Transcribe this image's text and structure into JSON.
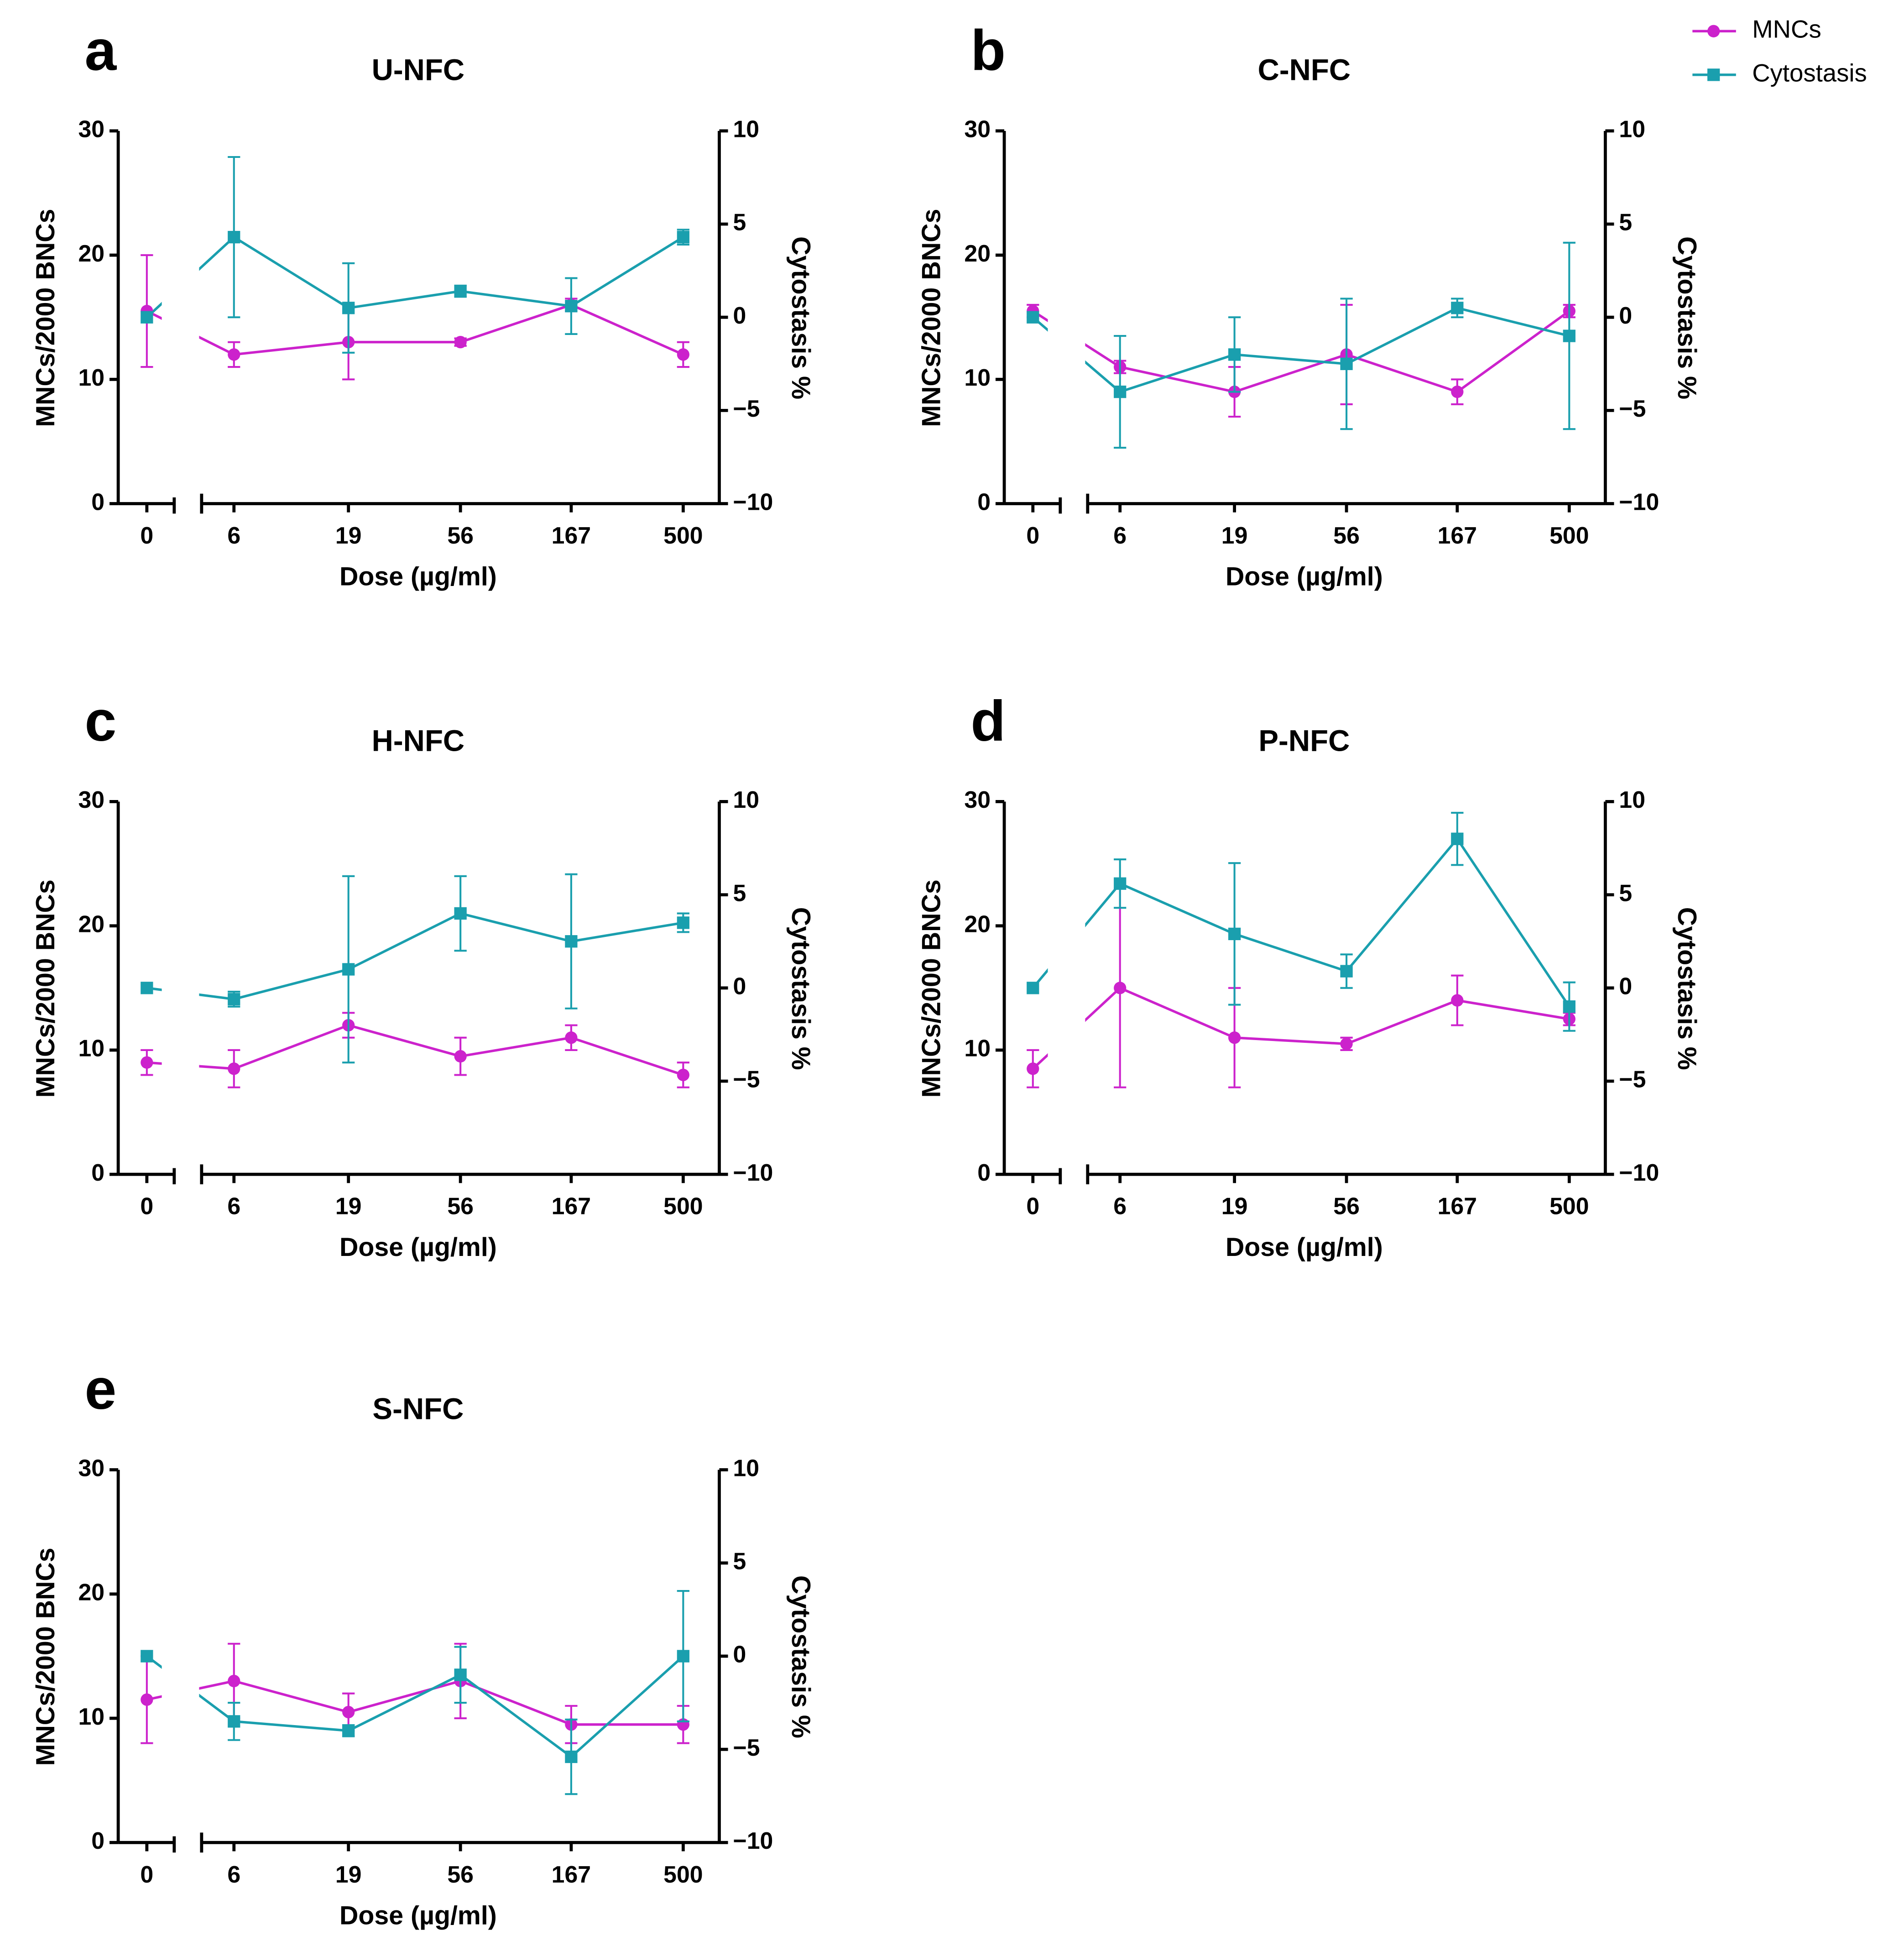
{
  "chart_data": [
    {
      "type": "line",
      "panel": "a",
      "title": "U-NFC",
      "xlabel": "Dose (µg/ml)",
      "ylabel": "MNCs/2000 BNCs",
      "y2label": "Cytostasis %",
      "categories": [
        "0",
        "6",
        "19",
        "56",
        "167",
        "500"
      ],
      "ylim": [
        0,
        30
      ],
      "yticks": [
        0,
        10,
        20,
        30
      ],
      "y2lim": [
        -10,
        10
      ],
      "y2ticks": [
        {
          "value": -10,
          "label": "−10"
        },
        {
          "value": -5,
          "label": "−5"
        },
        0,
        5,
        10
      ],
      "series": [
        {
          "name": "MNCs",
          "color": "#cc22cc",
          "marker": "circle",
          "values": [
            15.5,
            12,
            13,
            13,
            16,
            12
          ],
          "errors": [
            4.5,
            1,
            3,
            0.3,
            0.5,
            1
          ]
        },
        {
          "name": "Cytostasis",
          "color": "#1a9fae",
          "marker": "square",
          "axis": "y2",
          "values": [
            0,
            4.3,
            0.5,
            1.4,
            0.6,
            4.3
          ],
          "errors": [
            0,
            4.3,
            2.4,
            0.3,
            1.5,
            0.4
          ]
        }
      ]
    },
    {
      "type": "line",
      "panel": "b",
      "title": "C-NFC",
      "xlabel": "Dose (µg/ml)",
      "ylabel": "MNCs/2000 BNCs",
      "y2label": "Cytostasis %",
      "categories": [
        "0",
        "6",
        "19",
        "56",
        "167",
        "500"
      ],
      "ylim": [
        0,
        30
      ],
      "yticks": [
        0,
        10,
        20,
        30
      ],
      "y2lim": [
        -10,
        10
      ],
      "y2ticks": [
        {
          "value": -10,
          "label": "−10"
        },
        {
          "value": -5,
          "label": "−5"
        },
        0,
        5,
        10
      ],
      "series": [
        {
          "color": "#cc22cc",
          "marker": "circle",
          "values": [
            15.5,
            11,
            9,
            12,
            9,
            15.5
          ],
          "errors": [
            0.5,
            0.5,
            2,
            4,
            1,
            0.5
          ]
        },
        {
          "color": "#1a9fae",
          "marker": "square",
          "axis": "y2",
          "values": [
            0,
            -4.0,
            -2.0,
            -2.5,
            0.5,
            -1.0
          ],
          "errors": [
            0,
            3,
            2,
            3.5,
            0.5,
            5
          ]
        }
      ]
    },
    {
      "type": "line",
      "panel": "c",
      "title": "H-NFC",
      "xlabel": "Dose (µg/ml)",
      "ylabel": "MNCs/2000 BNCs",
      "y2label": "Cytostasis %",
      "categories": [
        "0",
        "6",
        "19",
        "56",
        "167",
        "500"
      ],
      "ylim": [
        0,
        30
      ],
      "yticks": [
        0,
        10,
        20,
        30
      ],
      "y2lim": [
        -10,
        10
      ],
      "y2ticks": [
        {
          "value": -10,
          "label": "−10"
        },
        {
          "value": -5,
          "label": "−5"
        },
        0,
        5,
        10
      ],
      "series": [
        {
          "color": "#cc22cc",
          "marker": "circle",
          "values": [
            9,
            8.5,
            12,
            9.5,
            11,
            8
          ],
          "errors": [
            1,
            1.5,
            1,
            1.5,
            1,
            1
          ]
        },
        {
          "color": "#1a9fae",
          "marker": "square",
          "axis": "y2",
          "values": [
            0,
            -0.6,
            1,
            4,
            2.5,
            3.5
          ],
          "errors": [
            0,
            0.4,
            5,
            2,
            3.6,
            0.5
          ]
        }
      ]
    },
    {
      "type": "line",
      "panel": "d",
      "title": "P-NFC",
      "xlabel": "Dose (µg/ml)",
      "ylabel": "MNCs/2000 BNCs",
      "y2label": "Cytostasis %",
      "categories": [
        "0",
        "6",
        "19",
        "56",
        "167",
        "500"
      ],
      "ylim": [
        0,
        30
      ],
      "yticks": [
        0,
        10,
        20,
        30
      ],
      "y2lim": [
        -10,
        10
      ],
      "y2ticks": [
        {
          "value": -10,
          "label": "−10"
        },
        {
          "value": -5,
          "label": "−5"
        },
        0,
        5,
        10
      ],
      "series": [
        {
          "color": "#cc22cc",
          "marker": "circle",
          "values": [
            8.5,
            15,
            11,
            10.5,
            14,
            12.5
          ],
          "errors": [
            1.5,
            8,
            4,
            0.5,
            2,
            0.5
          ]
        },
        {
          "color": "#1a9fae",
          "marker": "square",
          "axis": "y2",
          "values": [
            0,
            5.6,
            2.9,
            0.9,
            8.0,
            -1.0
          ],
          "errors": [
            0,
            1.3,
            3.8,
            0.9,
            1.4,
            1.3
          ]
        }
      ]
    },
    {
      "type": "line",
      "panel": "e",
      "title": "S-NFC",
      "xlabel": "Dose (µg/ml)",
      "ylabel": "MNCs/2000 BNCs",
      "y2label": "Cytostasis %",
      "categories": [
        "0",
        "6",
        "19",
        "56",
        "167",
        "500"
      ],
      "ylim": [
        0,
        30
      ],
      "yticks": [
        0,
        10,
        20,
        30
      ],
      "y2lim": [
        -10,
        10
      ],
      "y2ticks": [
        {
          "value": -10,
          "label": "−10"
        },
        {
          "value": -5,
          "label": "−5"
        },
        0,
        5,
        10
      ],
      "series": [
        {
          "color": "#cc22cc",
          "marker": "circle",
          "values": [
            11.5,
            13,
            10.5,
            13,
            9.5,
            9.5
          ],
          "errors": [
            3.5,
            3,
            1.5,
            3,
            1.5,
            1.5
          ]
        },
        {
          "color": "#1a9fae",
          "marker": "square",
          "axis": "y2",
          "values": [
            0,
            -3.5,
            -4.0,
            -1.0,
            -5.4,
            0
          ],
          "errors": [
            0,
            1,
            0.3,
            1.5,
            2,
            3.5
          ]
        }
      ]
    }
  ]
}
